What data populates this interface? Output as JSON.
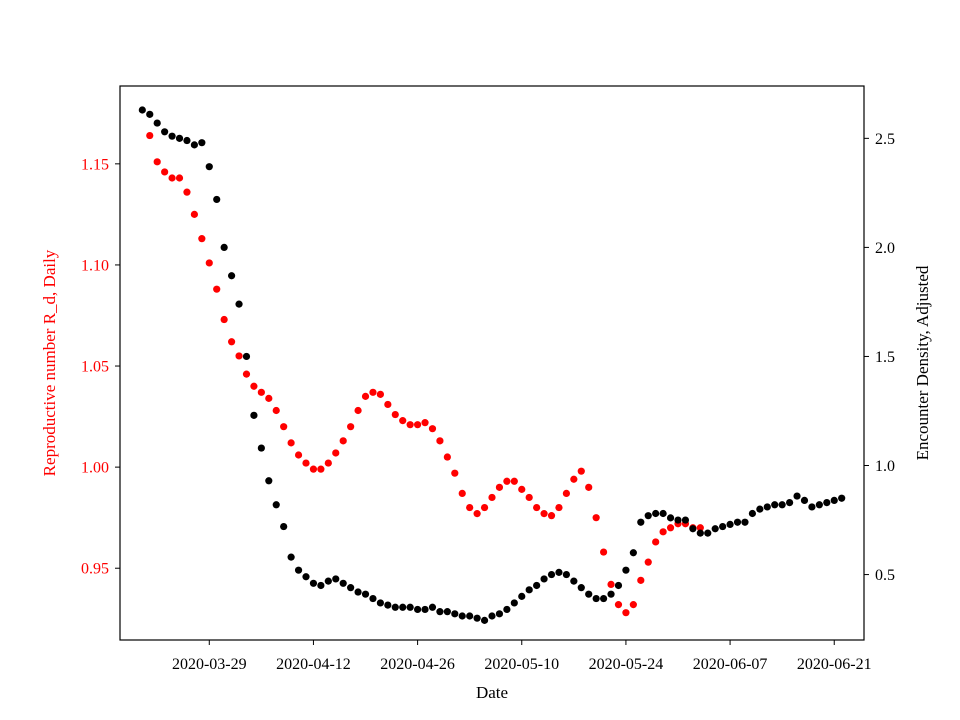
{
  "chart_data": {
    "type": "scatter",
    "xlabel": "Date",
    "ylabel_left": "Reproductive number R_d, Daily",
    "ylabel_right": "Encounter Density, Adjusted",
    "xlim": [
      "2020-03-17",
      "2020-06-25"
    ],
    "ylim_left": [
      0.9145,
      1.1885
    ],
    "ylim_right": [
      0.2,
      2.74
    ],
    "x_ticks": [
      "2020-03-29",
      "2020-04-12",
      "2020-04-26",
      "2020-05-10",
      "2020-05-24",
      "2020-06-07",
      "2020-06-21"
    ],
    "y_ticks_left": [
      "0.95",
      "1.00",
      "1.05",
      "1.10",
      "1.15"
    ],
    "y_ticks_right": [
      "0.5",
      "1.0",
      "1.5",
      "2.0",
      "2.5"
    ],
    "grid": false,
    "colors": {
      "left_series": "#ff0000",
      "right_series": "#000000"
    },
    "series": [
      {
        "axis": "left",
        "color": "#ff0000",
        "x": [
          "2020-03-21",
          "2020-03-22",
          "2020-03-23",
          "2020-03-24",
          "2020-03-25",
          "2020-03-26",
          "2020-03-27",
          "2020-03-28",
          "2020-03-29",
          "2020-03-30",
          "2020-03-31",
          "2020-04-01",
          "2020-04-02",
          "2020-04-03",
          "2020-04-04",
          "2020-04-05",
          "2020-04-06",
          "2020-04-07",
          "2020-04-08",
          "2020-04-09",
          "2020-04-10",
          "2020-04-11",
          "2020-04-12",
          "2020-04-13",
          "2020-04-14",
          "2020-04-15",
          "2020-04-16",
          "2020-04-17",
          "2020-04-18",
          "2020-04-19",
          "2020-04-20",
          "2020-04-21",
          "2020-04-22",
          "2020-04-23",
          "2020-04-24",
          "2020-04-25",
          "2020-04-26",
          "2020-04-27",
          "2020-04-28",
          "2020-04-29",
          "2020-04-30",
          "2020-05-01",
          "2020-05-02",
          "2020-05-03",
          "2020-05-04",
          "2020-05-05",
          "2020-05-06",
          "2020-05-07",
          "2020-05-08",
          "2020-05-09",
          "2020-05-10",
          "2020-05-11",
          "2020-05-12",
          "2020-05-13",
          "2020-05-14",
          "2020-05-15",
          "2020-05-16",
          "2020-05-17",
          "2020-05-18",
          "2020-05-19",
          "2020-05-20",
          "2020-05-21",
          "2020-05-22",
          "2020-05-23",
          "2020-05-24",
          "2020-05-25",
          "2020-05-26",
          "2020-05-27",
          "2020-05-28",
          "2020-05-29",
          "2020-05-30",
          "2020-05-31",
          "2020-06-01",
          "2020-06-02",
          "2020-06-03"
        ],
        "values": [
          1.164,
          1.151,
          1.146,
          1.143,
          1.143,
          1.136,
          1.125,
          1.113,
          1.101,
          1.088,
          1.073,
          1.062,
          1.055,
          1.046,
          1.04,
          1.037,
          1.034,
          1.028,
          1.02,
          1.012,
          1.006,
          1.002,
          0.999,
          0.999,
          1.002,
          1.007,
          1.013,
          1.02,
          1.028,
          1.035,
          1.037,
          1.036,
          1.031,
          1.026,
          1.023,
          1.021,
          1.021,
          1.022,
          1.019,
          1.013,
          1.005,
          0.997,
          0.987,
          0.98,
          0.977,
          0.98,
          0.985,
          0.99,
          0.993,
          0.993,
          0.989,
          0.985,
          0.98,
          0.977,
          0.976,
          0.98,
          0.987,
          0.994,
          0.998,
          0.99,
          0.975,
          0.958,
          0.942,
          0.932,
          0.928,
          0.932,
          0.944,
          0.953,
          0.963,
          0.968,
          0.97,
          0.972,
          0.972,
          0.97,
          0.97
        ]
      },
      {
        "axis": "right",
        "color": "#000000",
        "x": [
          "2020-03-20",
          "2020-03-21",
          "2020-03-22",
          "2020-03-23",
          "2020-03-24",
          "2020-03-25",
          "2020-03-26",
          "2020-03-27",
          "2020-03-28",
          "2020-03-29",
          "2020-03-30",
          "2020-03-31",
          "2020-04-01",
          "2020-04-02",
          "2020-04-03",
          "2020-04-04",
          "2020-04-05",
          "2020-04-06",
          "2020-04-07",
          "2020-04-08",
          "2020-04-09",
          "2020-04-10",
          "2020-04-11",
          "2020-04-12",
          "2020-04-13",
          "2020-04-14",
          "2020-04-15",
          "2020-04-16",
          "2020-04-17",
          "2020-04-18",
          "2020-04-19",
          "2020-04-20",
          "2020-04-21",
          "2020-04-22",
          "2020-04-23",
          "2020-04-24",
          "2020-04-25",
          "2020-04-26",
          "2020-04-27",
          "2020-04-28",
          "2020-04-29",
          "2020-04-30",
          "2020-05-01",
          "2020-05-02",
          "2020-05-03",
          "2020-05-04",
          "2020-05-05",
          "2020-05-06",
          "2020-05-07",
          "2020-05-08",
          "2020-05-09",
          "2020-05-10",
          "2020-05-11",
          "2020-05-12",
          "2020-05-13",
          "2020-05-14",
          "2020-05-15",
          "2020-05-16",
          "2020-05-17",
          "2020-05-18",
          "2020-05-19",
          "2020-05-20",
          "2020-05-21",
          "2020-05-22",
          "2020-05-23",
          "2020-05-24",
          "2020-05-25",
          "2020-05-26",
          "2020-05-27",
          "2020-05-28",
          "2020-05-29",
          "2020-05-30",
          "2020-05-31",
          "2020-06-01",
          "2020-06-02",
          "2020-06-03",
          "2020-06-04",
          "2020-06-05",
          "2020-06-06",
          "2020-06-07",
          "2020-06-08",
          "2020-06-09",
          "2020-06-10",
          "2020-06-11",
          "2020-06-12",
          "2020-06-13",
          "2020-06-14",
          "2020-06-15",
          "2020-06-16",
          "2020-06-17",
          "2020-06-18",
          "2020-06-19",
          "2020-06-20",
          "2020-06-21",
          "2020-06-22"
        ],
        "values": [
          2.63,
          2.61,
          2.57,
          2.53,
          2.51,
          2.5,
          2.49,
          2.47,
          2.48,
          2.37,
          2.22,
          2.0,
          1.87,
          1.74,
          1.5,
          1.23,
          1.08,
          0.93,
          0.82,
          0.72,
          0.58,
          0.52,
          0.49,
          0.46,
          0.45,
          0.47,
          0.48,
          0.46,
          0.44,
          0.42,
          0.41,
          0.39,
          0.37,
          0.36,
          0.35,
          0.35,
          0.35,
          0.34,
          0.34,
          0.35,
          0.33,
          0.33,
          0.32,
          0.31,
          0.31,
          0.3,
          0.29,
          0.31,
          0.32,
          0.34,
          0.37,
          0.4,
          0.43,
          0.45,
          0.48,
          0.5,
          0.51,
          0.5,
          0.47,
          0.44,
          0.41,
          0.39,
          0.39,
          0.41,
          0.45,
          0.52,
          0.6,
          0.74,
          0.77,
          0.78,
          0.78,
          0.76,
          0.75,
          0.75,
          0.71,
          0.69,
          0.69,
          0.71,
          0.72,
          0.73,
          0.74,
          0.74,
          0.78,
          0.8,
          0.81,
          0.82,
          0.82,
          0.83,
          0.86,
          0.84,
          0.81,
          0.82,
          0.83,
          0.84,
          0.85
        ]
      }
    ]
  }
}
